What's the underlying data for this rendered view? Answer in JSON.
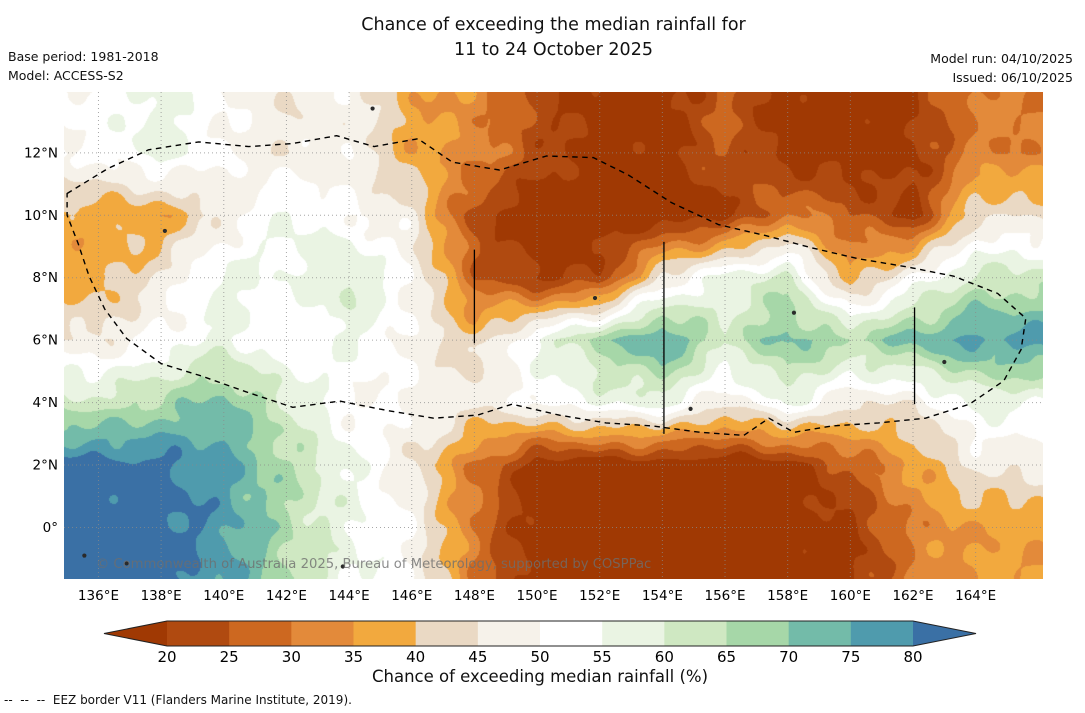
{
  "title": {
    "line1": "Chance of exceeding the median rainfall for",
    "line2": "11 to 24 October 2025"
  },
  "meta": {
    "base_period": "Base period: 1981-2018",
    "model": "Model: ACCESS-S2",
    "model_run": "Model run: 04/10/2025",
    "issued": "Issued: 06/10/2025"
  },
  "map": {
    "watermark": "© Commonwealth of Australia 2025, Bureau of Meteorology, supported by COSPPac"
  },
  "colorbar": {
    "tick_labels": [
      "20",
      "25",
      "30",
      "35",
      "40",
      "45",
      "50",
      "55",
      "60",
      "65",
      "70",
      "75",
      "80"
    ],
    "caption": "Chance of exceeding median rainfall (%)"
  },
  "footnote": "--  --  --  EEZ border V11 (Flanders Marine Institute, 2019).",
  "chart_data": {
    "type": "heatmap",
    "title": "Chance of exceeding the median rainfall for 11 to 24 October 2025",
    "units": "%",
    "lon_range": [
      134.9,
      166.15
    ],
    "lat_range": [
      -1.65,
      13.95
    ],
    "lon_ticks": {
      "values": [
        136,
        138,
        140,
        142,
        144,
        146,
        148,
        150,
        152,
        154,
        156,
        158,
        160,
        162,
        164
      ],
      "labels": [
        "136°E",
        "138°E",
        "140°E",
        "142°E",
        "144°E",
        "146°E",
        "148°E",
        "150°E",
        "152°E",
        "154°E",
        "156°E",
        "158°E",
        "160°E",
        "162°E",
        "164°E"
      ]
    },
    "lat_ticks": {
      "values": [
        12,
        10,
        8,
        6,
        4,
        2,
        0
      ],
      "labels": [
        "12°N",
        "10°N",
        "8°N",
        "6°N",
        "4°N",
        "2°N",
        "0°"
      ]
    },
    "grid": {
      "lons": [
        136,
        138,
        140,
        142,
        144,
        146,
        148,
        150,
        152,
        154,
        156,
        158,
        160,
        162,
        164
      ],
      "lats": [
        12,
        10,
        8,
        6,
        4,
        2,
        0
      ],
      "values": [
        [
          51,
          58,
          50,
          46,
          49,
          37,
          33,
          23,
          17,
          17,
          26,
          17,
          16,
          19,
          31
        ],
        [
          37,
          36,
          46,
          56,
          50,
          46,
          22,
          16,
          15,
          16,
          18,
          31,
          26,
          18,
          44
        ],
        [
          37,
          46,
          57,
          54,
          62,
          50,
          27,
          19,
          21,
          46,
          57,
          62,
          36,
          51,
          62
        ],
        [
          46,
          51,
          57,
          50,
          56,
          49,
          41,
          56,
          67,
          77,
          61,
          72,
          66,
          72,
          77
        ],
        [
          62,
          66,
          72,
          61,
          50,
          50,
          46,
          51,
          56,
          57,
          46,
          56,
          46,
          46,
          56
        ],
        [
          83,
          82,
          77,
          66,
          56,
          46,
          30,
          17,
          16,
          16,
          16,
          17,
          26,
          36,
          46
        ],
        [
          84,
          83,
          77,
          66,
          56,
          50,
          30,
          16,
          15,
          15,
          16,
          16,
          18,
          31,
          36
        ]
      ]
    },
    "colorscale": {
      "levels": [
        20,
        25,
        30,
        35,
        40,
        45,
        50,
        55,
        60,
        65,
        70,
        75,
        80
      ],
      "band_colors": [
        "#b04a10",
        "#cd6820",
        "#e38a3a",
        "#f2a93e",
        "#ead9c4",
        "#f6f2ea",
        "#ffffff",
        "#eaf4e3",
        "#cfe8c2",
        "#a6d7a8",
        "#73bba9",
        "#4f9bad"
      ],
      "below_color": "#a03903",
      "above_color": "#3a70a5"
    },
    "eez_border": [
      [
        135.0,
        10.7
      ],
      [
        136.3,
        11.5
      ],
      [
        137.6,
        12.1
      ],
      [
        139.2,
        12.35
      ],
      [
        140.8,
        12.2
      ],
      [
        142.2,
        12.3
      ],
      [
        143.6,
        12.55
      ],
      [
        144.8,
        12.2
      ],
      [
        146.2,
        12.45
      ],
      [
        147.3,
        11.7
      ],
      [
        148.8,
        11.45
      ],
      [
        150.3,
        11.9
      ],
      [
        151.8,
        11.85
      ],
      [
        152.9,
        11.3
      ],
      [
        154.3,
        10.4
      ],
      [
        155.8,
        9.7
      ],
      [
        157.3,
        9.35
      ],
      [
        158.8,
        8.95
      ],
      [
        160.3,
        8.6
      ],
      [
        161.8,
        8.35
      ],
      [
        163.3,
        8.05
      ],
      [
        164.7,
        7.5
      ],
      [
        165.6,
        6.7
      ],
      [
        165.45,
        5.7
      ],
      [
        164.9,
        4.7
      ],
      [
        163.8,
        3.95
      ],
      [
        162.4,
        3.5
      ],
      [
        160.9,
        3.35
      ],
      [
        159.4,
        3.25
      ],
      [
        158.2,
        3.05
      ],
      [
        157.4,
        3.5
      ],
      [
        156.6,
        2.95
      ],
      [
        155.2,
        3.05
      ],
      [
        153.7,
        3.25
      ],
      [
        152.2,
        3.35
      ],
      [
        150.7,
        3.6
      ],
      [
        149.2,
        3.95
      ],
      [
        148.1,
        3.6
      ],
      [
        146.7,
        3.5
      ],
      [
        145.2,
        3.75
      ],
      [
        143.7,
        4.05
      ],
      [
        142.2,
        3.85
      ],
      [
        140.7,
        4.35
      ],
      [
        139.3,
        4.85
      ],
      [
        138.0,
        5.25
      ],
      [
        136.9,
        6.05
      ],
      [
        136.2,
        7.0
      ],
      [
        135.7,
        8.05
      ],
      [
        135.35,
        9.1
      ],
      [
        135.0,
        10.0
      ]
    ],
    "divider_lines": [
      {
        "lon": 148.0,
        "lat_min": 5.9,
        "lat_max": 8.9
      },
      {
        "lon": 154.05,
        "lat_min": 3.0,
        "lat_max": 9.15
      },
      {
        "lon": 162.05,
        "lat_min": 3.95,
        "lat_max": 7.05
      }
    ],
    "islands": [
      [
        144.75,
        13.42
      ],
      [
        138.12,
        9.5
      ],
      [
        151.85,
        7.35
      ],
      [
        158.2,
        6.88
      ],
      [
        163.0,
        5.3
      ],
      [
        154.9,
        3.8
      ],
      [
        135.55,
        -0.9
      ],
      [
        136.9,
        -1.15
      ],
      [
        143.8,
        -1.25
      ]
    ]
  }
}
